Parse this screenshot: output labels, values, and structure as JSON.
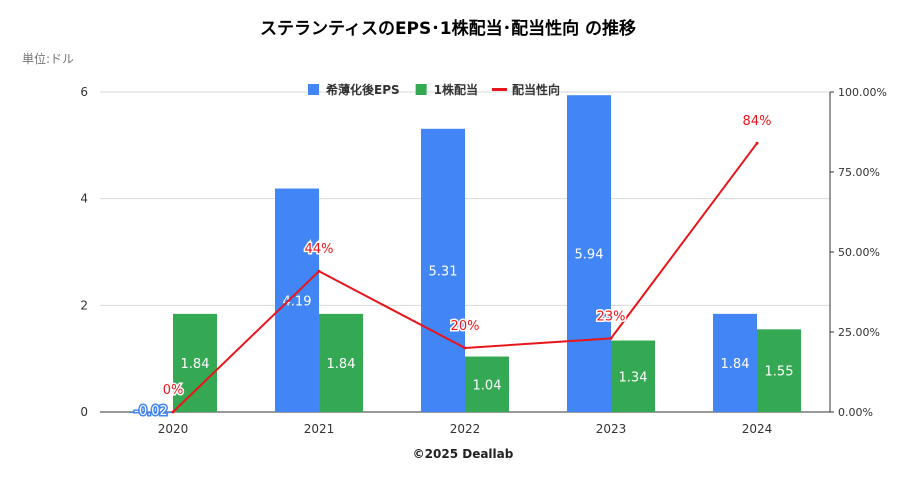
{
  "chart_data": {
    "type": "bar+line",
    "title": "ステランティスのEPS･1株配当･配当性向 の推移",
    "unit_label": "単位:ドル",
    "credit": "©2025 Deallab",
    "categories": [
      "2020",
      "2021",
      "2022",
      "2023",
      "2024"
    ],
    "series": [
      {
        "name": "希薄化後EPS",
        "kind": "bar",
        "axis": "left",
        "color": "#4285f4",
        "values": [
          -0.02,
          4.19,
          5.31,
          5.94,
          1.84
        ],
        "labels": [
          "-0.02",
          "4.19",
          "5.31",
          "5.94",
          "1.84"
        ]
      },
      {
        "name": "1株配当",
        "kind": "bar",
        "axis": "left",
        "color": "#34a853",
        "values": [
          1.84,
          1.84,
          1.04,
          1.34,
          1.55
        ],
        "labels": [
          "1.84",
          "1.84",
          "1.04",
          "1.34",
          "1.55"
        ]
      },
      {
        "name": "配当性向",
        "kind": "line",
        "axis": "right",
        "color": "#e8161c",
        "values": [
          0,
          44,
          20,
          23,
          84
        ],
        "labels": [
          "0%",
          "44%",
          "20%",
          "23%",
          "84%"
        ]
      }
    ],
    "y_left": {
      "min": 0,
      "max": 6,
      "ticks": [
        0,
        2,
        4,
        6
      ],
      "tick_labels": [
        "0",
        "2",
        "4",
        "6"
      ]
    },
    "y_right": {
      "min": 0,
      "max": 100,
      "ticks": [
        0,
        25,
        50,
        75,
        100
      ],
      "tick_labels": [
        "0.00%",
        "25.00%",
        "50.00%",
        "75.00%",
        "100.00%"
      ]
    },
    "legend_position": "top-center",
    "grid": true
  }
}
